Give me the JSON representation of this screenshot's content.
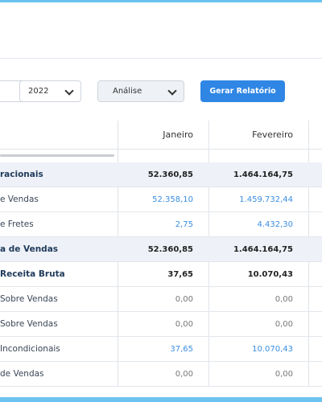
{
  "toolbar": {
    "year": "2022",
    "view": "Análise",
    "button": "Gerar Relatório"
  },
  "table": {
    "columns": [
      "Janeiro",
      "Fevereiro"
    ],
    "rows": [
      [
        "racionais",
        "52.360,85",
        "1.464.164,75"
      ],
      [
        "e Vendas",
        "52.358,10",
        "1.459.732,44"
      ],
      [
        "e Fretes",
        "2,75",
        "4.432,30"
      ],
      [
        "a de Vendas",
        "52.360,85",
        "1.464.164,75"
      ],
      [
        "Receita Bruta",
        "37,65",
        "10.070,43"
      ],
      [
        "Sobre Vendas",
        "0,00",
        "0,00"
      ],
      [
        "Sobre Vendas",
        "0,00",
        "0,00"
      ],
      [
        "Incondicionais",
        "37,65",
        "10.070,43"
      ],
      [
        "de Vendas",
        "0,00",
        "0,00"
      ]
    ]
  }
}
